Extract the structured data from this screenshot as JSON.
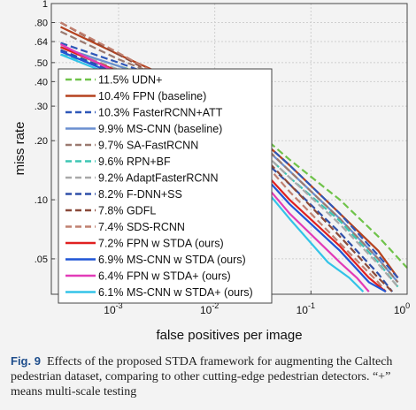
{
  "chart_data": {
    "type": "line",
    "xscale": "log",
    "yscale": "log",
    "xlabel": "false positives per image",
    "ylabel": "miss rate",
    "xlim": [
      0.0002,
      1
    ],
    "ylim": [
      0.033,
      1
    ],
    "xticks": [
      {
        "value": 0.001,
        "base": "10",
        "exp": "-3"
      },
      {
        "value": 0.01,
        "base": "10",
        "exp": "-2"
      },
      {
        "value": 0.1,
        "base": "10",
        "exp": "-1"
      },
      {
        "value": 1,
        "base": "10",
        "exp": "0"
      }
    ],
    "yticks": [
      {
        "value": 1,
        "label": "1"
      },
      {
        "value": 0.8,
        "label": ".80"
      },
      {
        "value": 0.64,
        "label": ".64"
      },
      {
        "value": 0.5,
        "label": ".50"
      },
      {
        "value": 0.4,
        "label": ".40"
      },
      {
        "value": 0.3,
        "label": ".30"
      },
      {
        "value": 0.2,
        "label": ".20"
      },
      {
        "value": 0.1,
        "label": ".10"
      },
      {
        "value": 0.05,
        "label": ".05"
      }
    ],
    "grid": true,
    "legend_position": "left",
    "series": [
      {
        "name": "11.5% UDN+",
        "color": "#6fc34a",
        "dash": "dashed",
        "x": [
          0.00025,
          0.001,
          0.01,
          0.06,
          0.2,
          0.5,
          1
        ],
        "y": [
          0.6,
          0.48,
          0.34,
          0.16,
          0.1,
          0.065,
          0.045
        ]
      },
      {
        "name": "10.4% FPN (baseline)",
        "color": "#b5421f",
        "dash": "solid",
        "x": [
          0.00025,
          0.001,
          0.01,
          0.06,
          0.2,
          0.5,
          0.8
        ],
        "y": [
          0.76,
          0.55,
          0.33,
          0.15,
          0.085,
          0.055,
          0.04
        ]
      },
      {
        "name": "10.3% FasterRCNN+ATT",
        "color": "#2e57b8",
        "dash": "dashed",
        "x": [
          0.00025,
          0.001,
          0.01,
          0.06,
          0.2,
          0.5,
          0.8
        ],
        "y": [
          0.63,
          0.5,
          0.33,
          0.15,
          0.085,
          0.052,
          0.04
        ]
      },
      {
        "name": "9.9% MS-CNN (baseline)",
        "color": "#6a8fd0",
        "dash": "solid",
        "x": [
          0.00025,
          0.001,
          0.01,
          0.06,
          0.2,
          0.5,
          0.8
        ],
        "y": [
          0.6,
          0.48,
          0.32,
          0.14,
          0.08,
          0.05,
          0.038
        ]
      },
      {
        "name": "9.7% SA-FastRCNN",
        "color": "#9a7a70",
        "dash": "dashed",
        "x": [
          0.00025,
          0.001,
          0.01,
          0.06,
          0.2,
          0.5,
          0.8
        ],
        "y": [
          0.72,
          0.52,
          0.33,
          0.14,
          0.08,
          0.05,
          0.038
        ]
      },
      {
        "name": "9.6% RPN+BF",
        "color": "#3dc6b4",
        "dash": "dashed",
        "x": [
          0.00025,
          0.001,
          0.01,
          0.06,
          0.2,
          0.5,
          0.8
        ],
        "y": [
          0.55,
          0.46,
          0.3,
          0.13,
          0.078,
          0.048,
          0.036
        ]
      },
      {
        "name": "9.2% AdaptFasterRCNN",
        "color": "#a9a9a9",
        "dash": "dashed",
        "x": [
          0.00025,
          0.001,
          0.01,
          0.06,
          0.2,
          0.5,
          0.8
        ],
        "y": [
          0.6,
          0.46,
          0.3,
          0.13,
          0.075,
          0.047,
          0.036
        ]
      },
      {
        "name": "8.2% F-DNN+SS",
        "color": "#2f4fa8",
        "dash": "dashed",
        "x": [
          0.00025,
          0.001,
          0.01,
          0.06,
          0.2,
          0.5,
          0.7
        ],
        "y": [
          0.58,
          0.44,
          0.27,
          0.12,
          0.068,
          0.042,
          0.034
        ]
      },
      {
        "name": "7.8% GDFL",
        "color": "#8a4a3a",
        "dash": "dashed",
        "x": [
          0.00025,
          0.001,
          0.01,
          0.06,
          0.2,
          0.5,
          0.7
        ],
        "y": [
          0.8,
          0.55,
          0.3,
          0.12,
          0.065,
          0.04,
          0.034
        ]
      },
      {
        "name": "7.4% SDS-RCNN",
        "color": "#c08070",
        "dash": "dashed",
        "x": [
          0.00025,
          0.001,
          0.01,
          0.06,
          0.2,
          0.5,
          0.6
        ],
        "y": [
          0.8,
          0.56,
          0.3,
          0.11,
          0.06,
          0.038,
          0.034
        ]
      },
      {
        "name": "7.2% FPN w STDA (ours)",
        "color": "#e02020",
        "dash": "solid",
        "x": [
          0.00025,
          0.001,
          0.01,
          0.06,
          0.2,
          0.4,
          0.6
        ],
        "y": [
          0.6,
          0.45,
          0.26,
          0.1,
          0.058,
          0.04,
          0.034
        ]
      },
      {
        "name": "6.9% MS-CNN w STDA (ours)",
        "color": "#1f55d6",
        "dash": "solid",
        "x": [
          0.00025,
          0.001,
          0.01,
          0.06,
          0.2,
          0.4,
          0.6
        ],
        "y": [
          0.57,
          0.43,
          0.25,
          0.095,
          0.055,
          0.038,
          0.034
        ]
      },
      {
        "name": "6.4% FPN w STDA+ (ours)",
        "color": "#e23bb8",
        "dash": "solid",
        "x": [
          0.00025,
          0.001,
          0.01,
          0.06,
          0.2,
          0.3,
          0.4
        ],
        "y": [
          0.62,
          0.44,
          0.24,
          0.085,
          0.048,
          0.04,
          0.034
        ]
      },
      {
        "name": "6.1% MS-CNN w STDA+ (ours)",
        "color": "#33c3e8",
        "dash": "solid",
        "x": [
          0.00025,
          0.001,
          0.01,
          0.06,
          0.15,
          0.25,
          0.35
        ],
        "y": [
          0.55,
          0.42,
          0.23,
          0.08,
          0.048,
          0.04,
          0.034
        ]
      }
    ]
  },
  "caption": {
    "label": "Fig. 9",
    "text": "Effects of the proposed STDA framework for augmenting the Caltech pedestrian dataset, comparing to other cutting-edge pedestrian detectors. “+” means multi-scale testing"
  }
}
